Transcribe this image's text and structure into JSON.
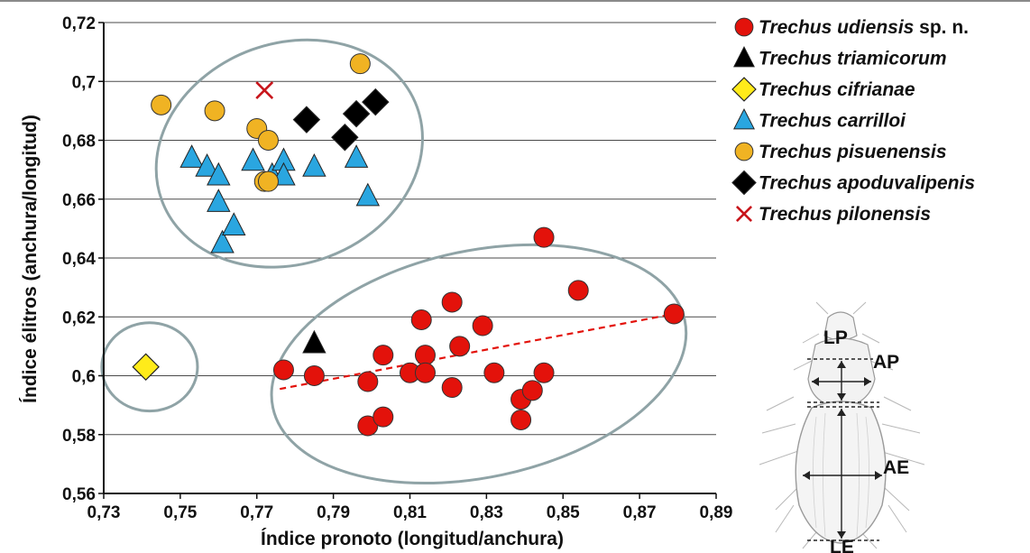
{
  "chart_data": {
    "type": "scatter",
    "xlabel": "Índice pronoto (longitud/anchura)",
    "ylabel": "Índice élitros (anchura/longitud)",
    "xlim": [
      0.73,
      0.89
    ],
    "ylim": [
      0.56,
      0.72
    ],
    "xticks": [
      "0,73",
      "0,75",
      "0,77",
      "0,79",
      "0,81",
      "0,83",
      "0,85",
      "0,87",
      "0,89"
    ],
    "yticks": [
      "0,56",
      "0,58",
      "0,6",
      "0,62",
      "0,64",
      "0,66",
      "0,68",
      "0,7",
      "0,72"
    ],
    "grid": "horizontal",
    "legend_position": "right",
    "series": [
      {
        "name": "Trechus udiensis",
        "suffix": " sp. n.",
        "marker": "circle",
        "color": "#e3120b",
        "points": [
          [
            0.777,
            0.602
          ],
          [
            0.785,
            0.6
          ],
          [
            0.799,
            0.598
          ],
          [
            0.799,
            0.583
          ],
          [
            0.803,
            0.607
          ],
          [
            0.803,
            0.586
          ],
          [
            0.81,
            0.601
          ],
          [
            0.813,
            0.619
          ],
          [
            0.814,
            0.607
          ],
          [
            0.814,
            0.601
          ],
          [
            0.821,
            0.625
          ],
          [
            0.821,
            0.596
          ],
          [
            0.823,
            0.61
          ],
          [
            0.829,
            0.617
          ],
          [
            0.832,
            0.601
          ],
          [
            0.839,
            0.592
          ],
          [
            0.839,
            0.585
          ],
          [
            0.842,
            0.595
          ],
          [
            0.845,
            0.601
          ],
          [
            0.845,
            0.647
          ],
          [
            0.854,
            0.629
          ],
          [
            0.879,
            0.621
          ]
        ]
      },
      {
        "name": "Trechus triamicorum",
        "suffix": "",
        "marker": "triangle",
        "color": "#000000",
        "points": [
          [
            0.785,
            0.611
          ]
        ]
      },
      {
        "name": "Trechus cifrianae",
        "suffix": "",
        "marker": "diamond",
        "color": "#ffeb1a",
        "points": [
          [
            0.741,
            0.603
          ]
        ]
      },
      {
        "name": "Trechus carrilloi",
        "suffix": "",
        "marker": "triangle",
        "color": "#2aa6e0",
        "points": [
          [
            0.753,
            0.674
          ],
          [
            0.757,
            0.671
          ],
          [
            0.76,
            0.668
          ],
          [
            0.76,
            0.659
          ],
          [
            0.761,
            0.645
          ],
          [
            0.764,
            0.651
          ],
          [
            0.769,
            0.673
          ],
          [
            0.774,
            0.668
          ],
          [
            0.777,
            0.673
          ],
          [
            0.777,
            0.668
          ],
          [
            0.785,
            0.671
          ],
          [
            0.796,
            0.674
          ],
          [
            0.799,
            0.661
          ]
        ]
      },
      {
        "name": "Trechus pisuenensis",
        "suffix": "",
        "marker": "circle",
        "color": "#f0b323",
        "points": [
          [
            0.745,
            0.692
          ],
          [
            0.759,
            0.69
          ],
          [
            0.77,
            0.684
          ],
          [
            0.772,
            0.666
          ],
          [
            0.773,
            0.68
          ],
          [
            0.773,
            0.666
          ],
          [
            0.797,
            0.706
          ]
        ]
      },
      {
        "name": "Trechus apoduvalipenis",
        "suffix": "",
        "marker": "diamond",
        "color": "#000000",
        "points": [
          [
            0.783,
            0.687
          ],
          [
            0.793,
            0.681
          ],
          [
            0.796,
            0.689
          ],
          [
            0.801,
            0.693
          ]
        ]
      },
      {
        "name": "Trechus pilonensis",
        "suffix": "",
        "marker": "cross",
        "color": "#c8151b",
        "points": [
          [
            0.772,
            0.697
          ]
        ]
      }
    ],
    "trendline": {
      "series": "Trechus udiensis",
      "from": [
        0.776,
        0.5955
      ],
      "to": [
        0.879,
        0.621
      ],
      "color": "#e3120b"
    },
    "ellipses": [
      {
        "cx": 0.7785,
        "cy": 0.6755,
        "rx": 0.0355,
        "ry": 0.0375,
        "angle": -20,
        "color": "#8fa3a6"
      },
      {
        "cx": 0.828,
        "cy": 0.604,
        "rx": 0.055,
        "ry": 0.0385,
        "angle": -12,
        "color": "#8fa3a6"
      },
      {
        "cx": 0.742,
        "cy": 0.603,
        "rx": 0.0125,
        "ry": 0.015,
        "angle": 0,
        "color": "#8fa3a6"
      }
    ],
    "diagram_labels": [
      "LP",
      "AP",
      "AE",
      "LE"
    ]
  }
}
